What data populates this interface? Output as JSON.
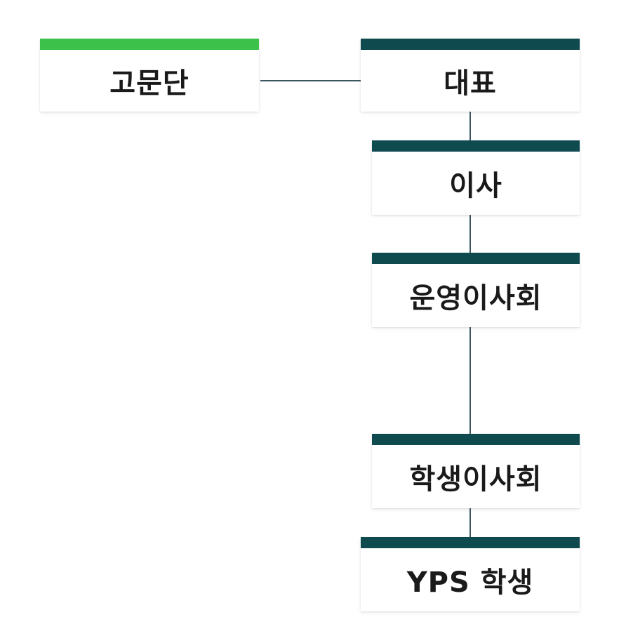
{
  "colors": {
    "advisor_bar": "#3cc24a",
    "main_bar": "#0f4a4f",
    "connector": "#3b5560"
  },
  "org_chart": {
    "advisory": {
      "label": "고문단"
    },
    "representative": {
      "label": "대표"
    },
    "director": {
      "label": "이사"
    },
    "operating_board": {
      "label": "운영이사회"
    },
    "student_council": {
      "label": "학생이사회"
    },
    "students": {
      "label": "YPS 학생"
    }
  }
}
